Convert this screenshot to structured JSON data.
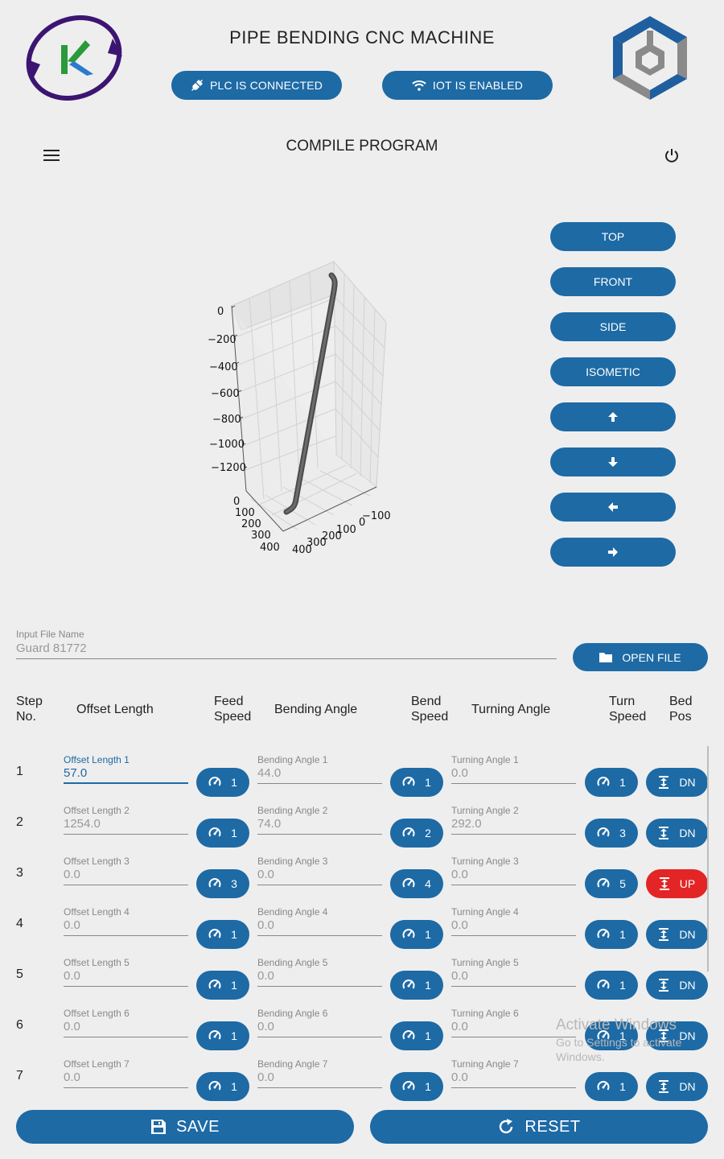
{
  "header": {
    "title": "PIPE BENDING CNC MACHINE",
    "plc_status": "PLC IS CONNECTED",
    "iot_status": "IOT IS ENABLED"
  },
  "toolbar": {
    "page_title": "COMPILE PROGRAM"
  },
  "view_buttons": {
    "top": "TOP",
    "front": "FRONT",
    "side": "SIDE",
    "isometric": "ISOMETIC"
  },
  "plot": {
    "z_ticks": [
      "0",
      "−200",
      "−400",
      "−600",
      "−800",
      "−1000",
      "−1200"
    ],
    "x_ticks": [
      "0",
      "100",
      "200",
      "300",
      "400"
    ],
    "y_ticks": [
      "400",
      "300",
      "200",
      "100",
      "0",
      "−100"
    ]
  },
  "file": {
    "label": "Input File Name",
    "value": "Guard 81772",
    "open_button": "OPEN FILE"
  },
  "table": {
    "headers": {
      "step_1": "Step",
      "step_2": "No.",
      "offset": "Offset Length",
      "feed_1": "Feed",
      "feed_2": "Speed",
      "bending": "Bending Angle",
      "bend_1": "Bend",
      "bend_2": "Speed",
      "turning": "Turning Angle",
      "turn_1": "Turn",
      "turn_2": "Speed",
      "bed_1": "Bed",
      "bed_2": "Pos"
    },
    "rows": [
      {
        "step": "1",
        "offset_label": "Offset Length 1",
        "offset": "57.0",
        "feed": "1",
        "bend_label": "Bending Angle 1",
        "bend": "44.0",
        "bend_speed": "1",
        "turn_label": "Turning Angle 1",
        "turn": "0.0",
        "turn_speed": "1",
        "bed": "DN"
      },
      {
        "step": "2",
        "offset_label": "Offset Length 2",
        "offset": "1254.0",
        "feed": "1",
        "bend_label": "Bending Angle 2",
        "bend": "74.0",
        "bend_speed": "2",
        "turn_label": "Turning Angle 2",
        "turn": "292.0",
        "turn_speed": "3",
        "bed": "DN"
      },
      {
        "step": "3",
        "offset_label": "Offset Length 3",
        "offset": "0.0",
        "feed": "3",
        "bend_label": "Bending Angle 3",
        "bend": "0.0",
        "bend_speed": "4",
        "turn_label": "Turning Angle 3",
        "turn": "0.0",
        "turn_speed": "5",
        "bed": "UP"
      },
      {
        "step": "4",
        "offset_label": "Offset Length 4",
        "offset": "0.0",
        "feed": "1",
        "bend_label": "Bending Angle 4",
        "bend": "0.0",
        "bend_speed": "1",
        "turn_label": "Turning Angle 4",
        "turn": "0.0",
        "turn_speed": "1",
        "bed": "DN"
      },
      {
        "step": "5",
        "offset_label": "Offset Length 5",
        "offset": "0.0",
        "feed": "1",
        "bend_label": "Bending Angle 5",
        "bend": "0.0",
        "bend_speed": "1",
        "turn_label": "Turning Angle 5",
        "turn": "0.0",
        "turn_speed": "1",
        "bed": "DN"
      },
      {
        "step": "6",
        "offset_label": "Offset Length 6",
        "offset": "0.0",
        "feed": "1",
        "bend_label": "Bending Angle 6",
        "bend": "0.0",
        "bend_speed": "1",
        "turn_label": "Turning Angle 6",
        "turn": "0.0",
        "turn_speed": "1",
        "bed": "DN"
      },
      {
        "step": "7",
        "offset_label": "Offset Length 7",
        "offset": "0.0",
        "feed": "1",
        "bend_label": "Bending Angle 7",
        "bend": "0.0",
        "bend_speed": "1",
        "turn_label": "Turning Angle 7",
        "turn": "0.0",
        "turn_speed": "1",
        "bed": "DN"
      }
    ]
  },
  "actions": {
    "save": "SAVE",
    "reset": "RESET"
  },
  "watermark": {
    "line1": "Activate Windows",
    "line2": "Go to Settings to activate",
    "line3": "Windows."
  },
  "colors": {
    "primary": "#1d6aa5",
    "bed_up": "#e42525",
    "background": "#eeeeee"
  }
}
